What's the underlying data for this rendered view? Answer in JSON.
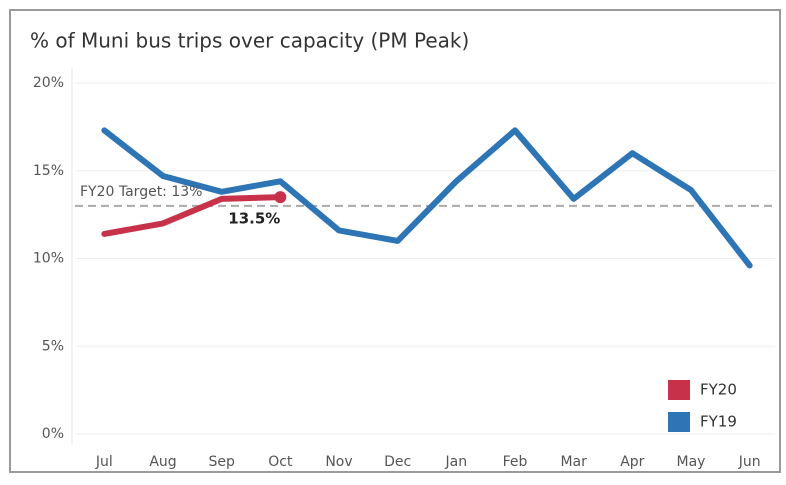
{
  "chart_data": {
    "type": "line",
    "title": "% of Muni bus trips over capacity (PM Peak)",
    "categories": [
      "Jul",
      "Aug",
      "Sep",
      "Oct",
      "Nov",
      "Dec",
      "Jan",
      "Feb",
      "Mar",
      "Apr",
      "May",
      "Jun"
    ],
    "series": [
      {
        "name": "FY20",
        "color": "#c8314a",
        "values": [
          11.4,
          12.0,
          13.4,
          13.5,
          null,
          null,
          null,
          null,
          null,
          null,
          null,
          null
        ],
        "value_labels": [
          null,
          null,
          null,
          "13.5%",
          null,
          null,
          null,
          null,
          null,
          null,
          null,
          null
        ]
      },
      {
        "name": "FY19",
        "color": "#2e75b6",
        "values": [
          17.3,
          14.7,
          13.8,
          14.4,
          11.6,
          11.0,
          14.4,
          17.3,
          13.4,
          16.0,
          13.9,
          9.6
        ]
      }
    ],
    "target": {
      "label": "FY20 Target: 13%",
      "value": 13
    },
    "ylim": [
      0,
      20
    ],
    "yticks": [
      {
        "value": 0,
        "label": "0%"
      },
      {
        "value": 5,
        "label": "5%"
      },
      {
        "value": 10,
        "label": "10%"
      },
      {
        "value": 15,
        "label": "15%"
      },
      {
        "value": 20,
        "label": "20%"
      }
    ],
    "grid": true,
    "legend": "bottom-right"
  }
}
